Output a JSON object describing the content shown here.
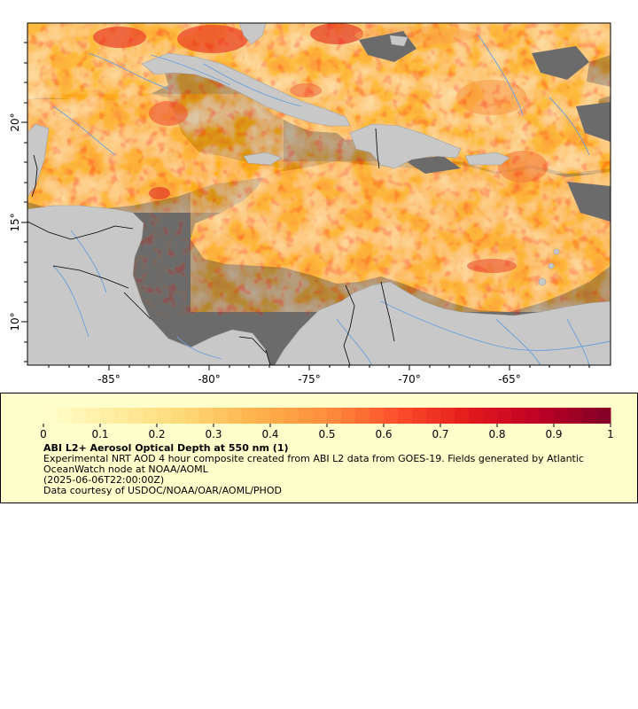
{
  "map": {
    "lon_ticks": [
      "-85°",
      "-80°",
      "-75°",
      "-70°",
      "-65°"
    ],
    "lat_ticks": [
      "20°",
      "15°",
      "10°"
    ],
    "colors": {
      "ocean_nodata": "#6b6b6b",
      "land": "#c8c8c8",
      "rivers": "#6a9fd8",
      "borders": "#000000",
      "frame": "#000000"
    }
  },
  "legend": {
    "title": "ABI L2+ Aerosol Optical Depth at 550 nm (1)",
    "description": "Experimental NRT AOD 4 hour composite created from ABI L2 data from GOES-19. Fields generated by Atlantic OceanWatch node at NOAA/AOML",
    "timestamp": "(2025-06-06T22:00:00Z)",
    "credit": "Data courtesy of USDOC/NOAA/OAR/AOML/PHOD",
    "ticks": [
      "0",
      "0.1",
      "0.2",
      "0.3",
      "0.4",
      "0.5",
      "0.6",
      "0.7",
      "0.8",
      "0.9",
      "1"
    ],
    "colorscale": [
      "#ffffcc",
      "#ffeda0",
      "#fed976",
      "#feb24c",
      "#fd8d3c",
      "#fc4e2a",
      "#e31a1c",
      "#bd0026",
      "#800026"
    ]
  }
}
